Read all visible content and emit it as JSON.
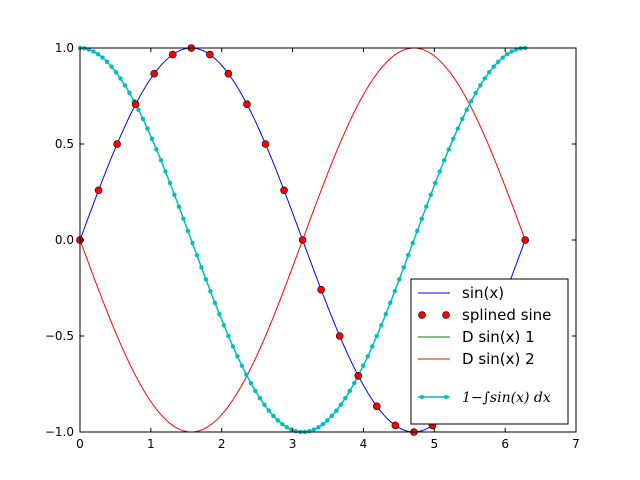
{
  "chart_data": {
    "type": "line",
    "title": "",
    "xlabel": "",
    "ylabel": "",
    "xlim": [
      0,
      7
    ],
    "ylim": [
      -1.0,
      1.0
    ],
    "xticks": [
      "0",
      "1",
      "2",
      "3",
      "4",
      "5",
      "6",
      "7"
    ],
    "yticks": [
      "−1.0",
      "−0.5",
      "0.0",
      "0.5",
      "1.0"
    ],
    "grid": false,
    "legend_position": "lower-right",
    "colors": {
      "sin": "#0000ff",
      "splined": "#ff0000",
      "d1": "#008000",
      "d2": "#ff0000",
      "integral": "#00bfbf"
    },
    "series": [
      {
        "key": "sin",
        "name": "sin(x)",
        "style": "line",
        "x_range": [
          0,
          6.2832
        ],
        "samples": 200,
        "function": "sin(x)"
      },
      {
        "key": "splined",
        "name": "splined sine",
        "style": "markers",
        "x": [
          0,
          0.2618,
          0.5236,
          0.7854,
          1.0472,
          1.309,
          1.5708,
          1.8326,
          2.0944,
          2.3562,
          2.618,
          2.8798,
          3.1416,
          3.4034,
          3.6652,
          3.927,
          4.1888,
          4.4506,
          4.7124,
          4.9742,
          5.236,
          5.4978,
          5.7596,
          6.0214,
          6.2832
        ],
        "y": [
          0,
          0.2588,
          0.5,
          0.7071,
          0.866,
          0.9659,
          1.0,
          0.9659,
          0.866,
          0.7071,
          0.5,
          0.2588,
          0,
          -0.2588,
          -0.5,
          -0.7071,
          -0.866,
          -0.9659,
          -1.0,
          -0.9659,
          -0.866,
          -0.7071,
          -0.5,
          -0.2588,
          0
        ]
      },
      {
        "key": "d1",
        "name": "D sin(x) 1",
        "style": "line",
        "x_range": [
          0,
          6.2832
        ],
        "samples": 200,
        "function": "cos(x)"
      },
      {
        "key": "d2",
        "name": "D sin(x) 2",
        "style": "line",
        "x_range": [
          0,
          6.2832
        ],
        "samples": 200,
        "function": "-sin(x)"
      },
      {
        "key": "integral",
        "name": "1−∫sin(x) dx",
        "style": "line-markers",
        "x_range": [
          0,
          6.2832
        ],
        "samples": 100,
        "function": "cos(x)"
      }
    ]
  }
}
